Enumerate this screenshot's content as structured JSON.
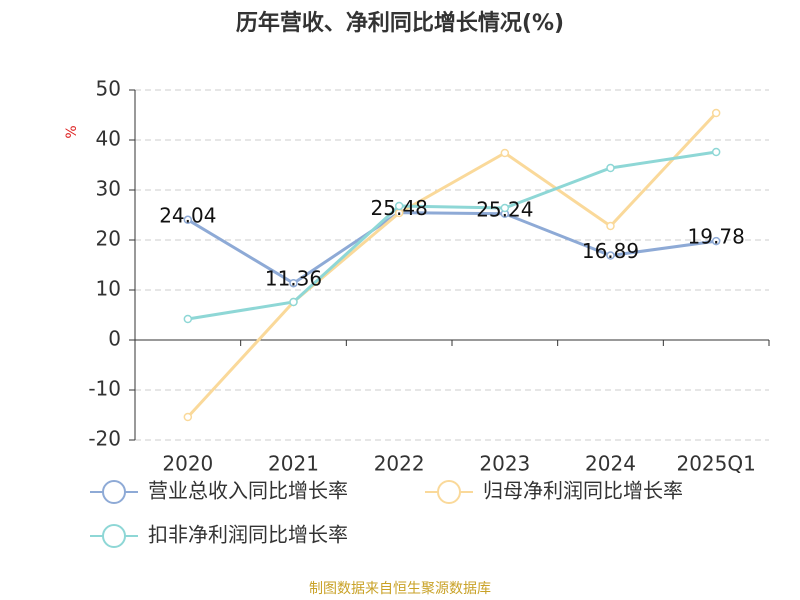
{
  "chart_data": {
    "type": "line",
    "title": "历年营收、净利同比增长情况(%)",
    "y_label": "%",
    "categories": [
      "2020",
      "2021",
      "2022",
      "2023",
      "2024",
      "2025Q1"
    ],
    "series": [
      {
        "name": "营业总收入同比增长率",
        "color": "#8eaad6",
        "values": [
          24.04,
          11.36,
          25.48,
          25.24,
          16.89,
          19.78
        ],
        "show_labels": true
      },
      {
        "name": "归母净利润同比增长率",
        "color": "#fad99a",
        "values": [
          -15.4,
          7.6,
          25.4,
          37.4,
          22.8,
          45.4
        ],
        "show_labels": false
      },
      {
        "name": "扣非净利润同比增长率",
        "color": "#8ed7d6",
        "values": [
          4.2,
          7.6,
          26.8,
          26.4,
          34.4,
          37.6
        ],
        "show_labels": false
      }
    ],
    "ylim": [
      -20,
      50
    ],
    "yticks": [
      -20,
      -10,
      0,
      10,
      20,
      30,
      40,
      50
    ],
    "grid": true,
    "source": "制图数据来自恒生聚源数据库"
  }
}
